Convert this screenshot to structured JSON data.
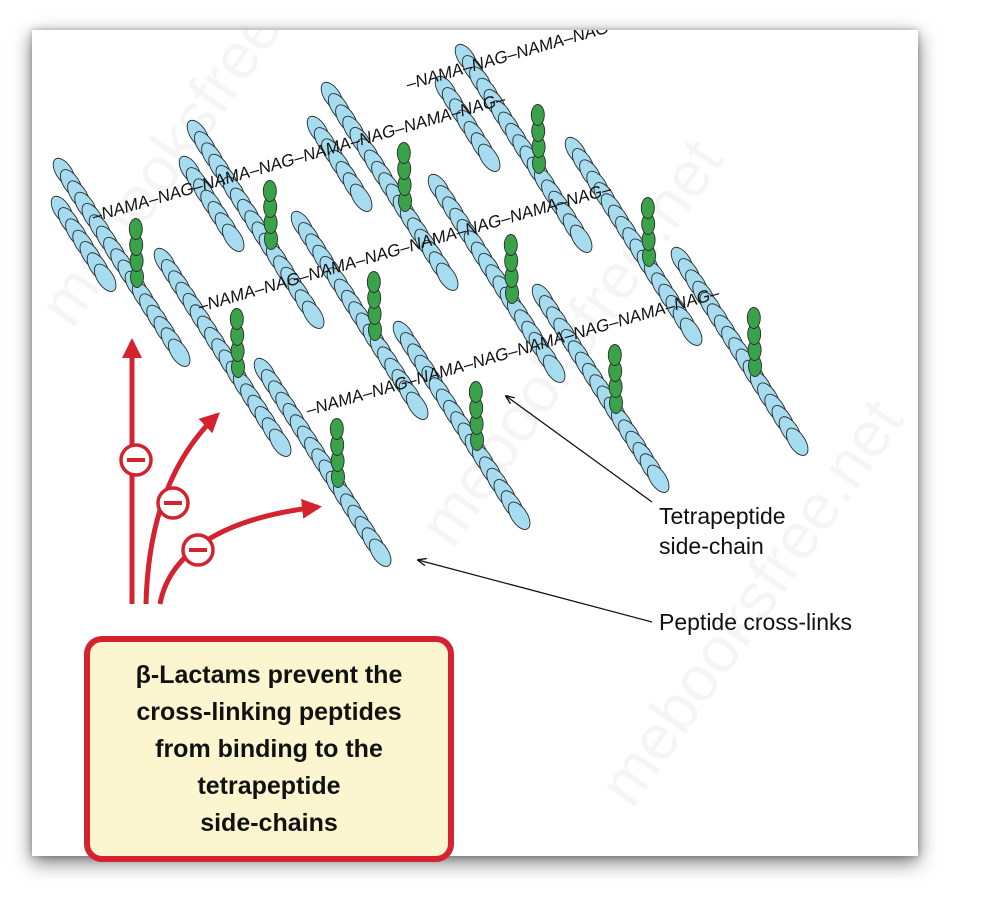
{
  "diagram": {
    "chains": [
      {
        "label": "–NAMA–NAG–NAMA–NAG–NAMA–NAG–NAMA–NAG–"
      },
      {
        "label": "–NAMA–NAG–NAMA–NAG–NAMA–NAG–NAMA–NAG–"
      },
      {
        "label": "–NAMA–NAG–NAMA–NAG–NAMA–NAG–NAMA–NAG–"
      },
      {
        "label": "–NAMA–NAG–NAMA–NAG–NAMA–NAG–NAMA–NAG–"
      }
    ],
    "callouts": {
      "tetrapeptide": [
        "Tetrapeptide",
        "side-chain"
      ],
      "crosslinks": "Peptide cross-links"
    },
    "info_box": {
      "text": "β-Lactams prevent the\ncross-linking peptides\nfrom binding to the\ntetrapeptide\nside-chains"
    },
    "inhibition_symbol": "−",
    "watermark": "mebooksfree.net",
    "colors": {
      "peptide_bead": "#a6dcef",
      "tetrapeptide_bead": "#3aa34a",
      "arrow_red": "#d4232f",
      "box_fill": "#fbf6d0"
    }
  }
}
